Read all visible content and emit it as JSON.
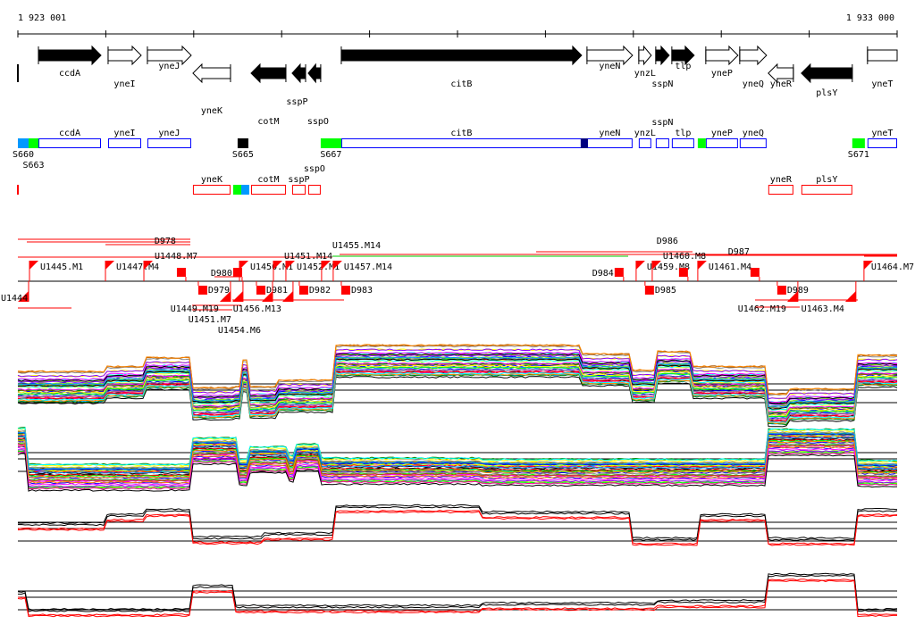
{
  "region": {
    "start": 1923001,
    "end": 1933000,
    "start_label": "1 923 001",
    "end_label": "1 933 000"
  },
  "colors": {
    "forward_fill": "#000000",
    "outline_blue": "#0000ff",
    "outline_red": "#ff0000",
    "green": "#00ff00",
    "lightblue": "#0099ff",
    "darkblue": "#000080",
    "marker": "#ff0000"
  },
  "genes": [
    {
      "name": "ccdA",
      "start": 1923235,
      "end": 1923946,
      "strand": "+",
      "fill": "black"
    },
    {
      "name": "yneI",
      "start": 1924027,
      "end": 1924403,
      "strand": "+",
      "fill": "white"
    },
    {
      "name": "yneJ",
      "start": 1924474,
      "end": 1924972,
      "strand": "+",
      "fill": "white"
    },
    {
      "name": "yneK",
      "start": 1924992,
      "end": 1925419,
      "strand": "-",
      "fill": "white"
    },
    {
      "name": "cotM",
      "start": 1925653,
      "end": 1926049,
      "strand": "-",
      "fill": "black"
    },
    {
      "name": "sspP",
      "start": 1926120,
      "end": 1926273,
      "strand": "-",
      "fill": "black"
    },
    {
      "name": "sspO",
      "start": 1926303,
      "end": 1926445,
      "strand": "-",
      "fill": "black"
    },
    {
      "name": "citB",
      "start": 1926679,
      "end": 1929412,
      "strand": "+",
      "fill": "black"
    },
    {
      "name": "yneN",
      "start": 1929473,
      "end": 1929991,
      "strand": "+",
      "fill": "white"
    },
    {
      "name": "ynzL",
      "start": 1930062,
      "end": 1930204,
      "strand": "+",
      "fill": "white"
    },
    {
      "name": "sspN",
      "start": 1930255,
      "end": 1930408,
      "strand": "+",
      "fill": "black"
    },
    {
      "name": "tlp",
      "start": 1930438,
      "end": 1930692,
      "strand": "+",
      "fill": "black"
    },
    {
      "name": "yneP",
      "start": 1930824,
      "end": 1931190,
      "strand": "+",
      "fill": "white"
    },
    {
      "name": "yneQ",
      "start": 1931210,
      "end": 1931515,
      "strand": "+",
      "fill": "white"
    },
    {
      "name": "yneR",
      "start": 1931535,
      "end": 1931820,
      "strand": "-",
      "fill": "white"
    },
    {
      "name": "plsY",
      "start": 1931911,
      "end": 1932490,
      "strand": "-",
      "fill": "black"
    },
    {
      "name": "yneT",
      "start": 1932663,
      "end": 1933000,
      "strand": "+",
      "fill": "white"
    }
  ],
  "segments": [
    {
      "label": "S660",
      "start": 1923001,
      "end": 1923123,
      "color": "#0099ff",
      "track": "+"
    },
    {
      "label": "S663",
      "start": 1923123,
      "end": 1923235,
      "color": "#00ff00",
      "track": "+"
    },
    {
      "label": "S665",
      "start": 1925500,
      "end": 1925622,
      "color": "#000000",
      "track": "+"
    },
    {
      "label": "S667",
      "start": 1926445,
      "end": 1926679,
      "color": "#00ff00",
      "track": "+"
    },
    {
      "label": "",
      "start": 1929402,
      "end": 1929483,
      "color": "#000080",
      "track": "+"
    },
    {
      "label": "",
      "start": 1930733,
      "end": 1930824,
      "color": "#00ff00",
      "track": "+"
    },
    {
      "label": "S671",
      "start": 1932490,
      "end": 1932633,
      "color": "#00ff00",
      "track": "+"
    },
    {
      "label": "",
      "start": 1925449,
      "end": 1925541,
      "color": "#00ff00",
      "track": "-"
    },
    {
      "label": "",
      "start": 1925541,
      "end": 1925632,
      "color": "#0099ff",
      "track": "-"
    }
  ],
  "markers": [
    {
      "label": "U1445.M1",
      "pos": 1923133,
      "kind": "flag",
      "side": "above"
    },
    {
      "label": "U1447.M4",
      "pos": 1923997,
      "kind": "flag",
      "side": "above"
    },
    {
      "label": "U1448.M7",
      "pos": 1924434,
      "kind": "flag",
      "side": "above"
    },
    {
      "label": "U1450.M1",
      "pos": 1925521,
      "kind": "flag",
      "side": "above"
    },
    {
      "label": "U1451.M14",
      "pos": 1925907,
      "kind": "flag",
      "side": "above"
    },
    {
      "label": "U1452.M1",
      "pos": 1926049,
      "kind": "flag",
      "side": "above"
    },
    {
      "label": "U1455.M14",
      "pos": 1926455,
      "kind": "flag",
      "side": "above"
    },
    {
      "label": "U1457.M14",
      "pos": 1926587,
      "kind": "flag",
      "side": "above"
    },
    {
      "label": "U1459.M8",
      "pos": 1930032,
      "kind": "flag",
      "side": "above"
    },
    {
      "label": "U1460.M8",
      "pos": 1930215,
      "kind": "flag",
      "side": "above"
    },
    {
      "label": "U1461.M4",
      "pos": 1930733,
      "kind": "flag",
      "side": "above"
    },
    {
      "label": "U1464.M7",
      "pos": 1932623,
      "kind": "flag",
      "side": "above"
    },
    {
      "label": "D978",
      "pos": 1924911,
      "kind": "box",
      "side": "above"
    },
    {
      "label": "D980",
      "pos": 1925551,
      "kind": "box",
      "side": "above"
    },
    {
      "label": "D984",
      "pos": 1929889,
      "kind": "box",
      "side": "above"
    },
    {
      "label": "D986",
      "pos": 1930621,
      "kind": "box",
      "side": "above"
    },
    {
      "label": "D987",
      "pos": 1931434,
      "kind": "box",
      "side": "above"
    },
    {
      "label": "D979",
      "pos": 1925053,
      "kind": "box",
      "side": "below"
    },
    {
      "label": "D981",
      "pos": 1925714,
      "kind": "box",
      "side": "below"
    },
    {
      "label": "D982",
      "pos": 1926201,
      "kind": "box",
      "side": "below"
    },
    {
      "label": "D983",
      "pos": 1926679,
      "kind": "box",
      "side": "below"
    },
    {
      "label": "D985",
      "pos": 1930133,
      "kind": "box",
      "side": "below"
    },
    {
      "label": "D989",
      "pos": 1931637,
      "kind": "box",
      "side": "below"
    },
    {
      "label": "U1444",
      "pos": 1923123,
      "kind": "flag",
      "side": "below"
    },
    {
      "label": "U1449.M19",
      "pos": 1925419,
      "kind": "flag",
      "side": "below"
    },
    {
      "label": "U1451.M7",
      "pos": 1925561,
      "kind": "flag",
      "side": "below"
    },
    {
      "label": "U1454.M6",
      "pos": 1925897,
      "kind": "flag",
      "side": "below"
    },
    {
      "label": "U1456.M13",
      "pos": 1926130,
      "kind": "flag",
      "side": "below"
    },
    {
      "label": "U1462.M19",
      "pos": 1931871,
      "kind": "flag",
      "side": "below"
    },
    {
      "label": "U1463.M4",
      "pos": 1932531,
      "kind": "flag",
      "side": "below"
    }
  ],
  "expression_panels": [
    {
      "series_count": 40,
      "multicolor": true,
      "spread": 2.6,
      "profile": [
        [
          1923001,
          1.5
        ],
        [
          1924000,
          1.9
        ],
        [
          1924460,
          2.6
        ],
        [
          1924980,
          0.2
        ],
        [
          1925440,
          0.3
        ],
        [
          1925540,
          2.4
        ],
        [
          1925640,
          0.3
        ],
        [
          1925950,
          0.8
        ],
        [
          1926580,
          3.6
        ],
        [
          1929400,
          2.9
        ],
        [
          1929990,
          1.6
        ],
        [
          1930250,
          3.1
        ],
        [
          1930670,
          1.9
        ],
        [
          1931520,
          -0.3
        ],
        [
          1931740,
          0.1
        ],
        [
          1932530,
          2.8
        ]
      ]
    },
    {
      "series_count": 40,
      "multicolor": true,
      "spread": 2.2,
      "profile": [
        [
          1923001,
          2.7
        ],
        [
          1923120,
          -0.2
        ],
        [
          1924980,
          1.9
        ],
        [
          1925490,
          0.2
        ],
        [
          1925640,
          1.2
        ],
        [
          1926050,
          0.5
        ],
        [
          1926150,
          1.4
        ],
        [
          1926450,
          0.3
        ],
        [
          1928280,
          0.2
        ],
        [
          1931520,
          2.6
        ],
        [
          1932530,
          0.1
        ]
      ]
    },
    {
      "series_count": 4,
      "multicolor": false,
      "spread": 0.6,
      "profile": [
        [
          1923001,
          1.1
        ],
        [
          1924000,
          1.8
        ],
        [
          1924460,
          2.2
        ],
        [
          1924980,
          0.0
        ],
        [
          1925790,
          0.3
        ],
        [
          1926580,
          2.5
        ],
        [
          1928280,
          2.0
        ],
        [
          1929990,
          -0.1
        ],
        [
          1930750,
          1.8
        ],
        [
          1931520,
          -0.1
        ],
        [
          1932530,
          2.2
        ]
      ]
    },
    {
      "series_count": 4,
      "multicolor": false,
      "spread": 0.5,
      "profile": [
        [
          1923001,
          1.1
        ],
        [
          1923120,
          -0.3
        ],
        [
          1924980,
          1.6
        ],
        [
          1925440,
          0.0
        ],
        [
          1928280,
          0.2
        ],
        [
          1930250,
          0.4
        ],
        [
          1931520,
          2.5
        ],
        [
          1932530,
          -0.3
        ]
      ]
    }
  ]
}
